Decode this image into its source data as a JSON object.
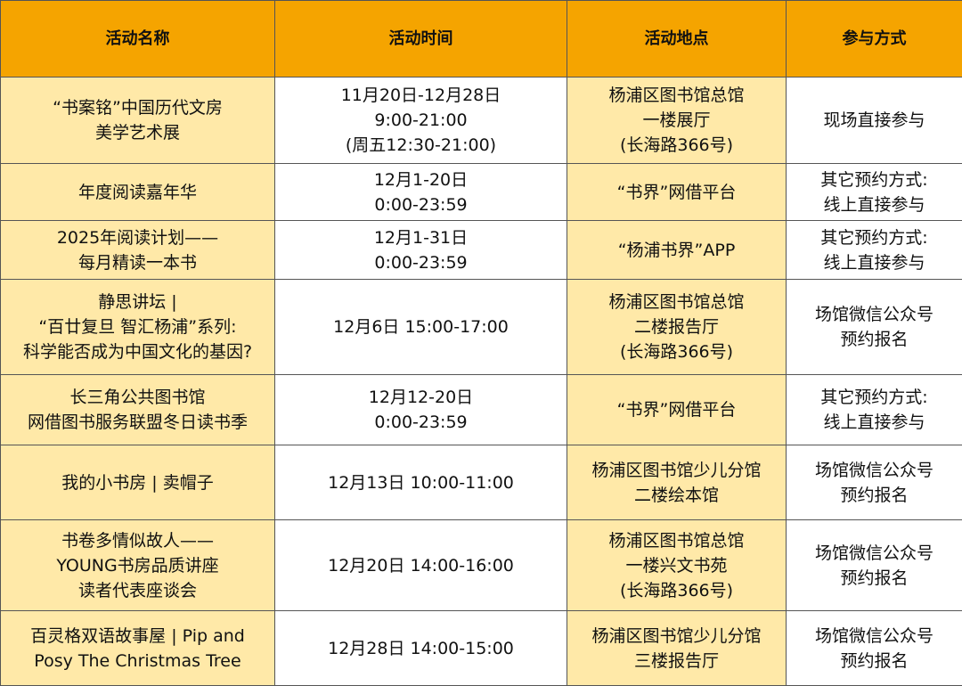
{
  "colors": {
    "header": "#F5A400",
    "highlight_column": "#FFE9A8",
    "plain_column": "#FFFFFF"
  },
  "headers": [
    "活动名称",
    "活动时间",
    "活动地点",
    "参与方式"
  ],
  "rows": [
    [
      "“书案铭”中国历代文房\n美学艺术展",
      "11月20日-12月28日\n9:00-21:00\n(周五12:30-21:00)",
      "杨浦区图书馆总馆\n一楼展厅\n(长海路366号)",
      "现场直接参与"
    ],
    [
      "年度阅读嘉年华",
      "12月1-20日\n0:00-23:59",
      "“书界”网借平台",
      "其它预约方式:\n线上直接参与"
    ],
    [
      "2025年阅读计划——\n每月精读一本书",
      "12月1-31日\n0:00-23:59",
      "“杨浦书界”APP",
      "其它预约方式:\n线上直接参与"
    ],
    [
      "静思讲坛 |\n“百廿复旦 智汇杨浦”系列:\n科学能否成为中国文化的基因?",
      "12月6日  15:00-17:00",
      "杨浦区图书馆总馆\n二楼报告厅\n(长海路366号)",
      "场馆微信公众号\n预约报名"
    ],
    [
      "长三角公共图书馆\n网借图书服务联盟冬日读书季",
      "12月12-20日\n0:00-23:59",
      "“书界”网借平台",
      "其它预约方式:\n线上直接参与"
    ],
    [
      "我的小书房 | 卖帽子",
      "12月13日  10:00-11:00",
      "杨浦区图书馆少儿分馆\n二楼绘本馆",
      "场馆微信公众号\n预约报名"
    ],
    [
      "书卷多情似故人——\nYOUNG书房品质讲座\n读者代表座谈会",
      "12月20日  14:00-16:00",
      "杨浦区图书馆总馆\n一楼兴文书苑\n(长海路366号)",
      "场馆微信公众号\n预约报名"
    ],
    [
      "百灵格双语故事屋 | Pip and\nPosy The Christmas Tree",
      "12月28日  14:00-15:00",
      "杨浦区图书馆少儿分馆\n三楼报告厅",
      "场馆微信公众号\n预约报名"
    ]
  ]
}
